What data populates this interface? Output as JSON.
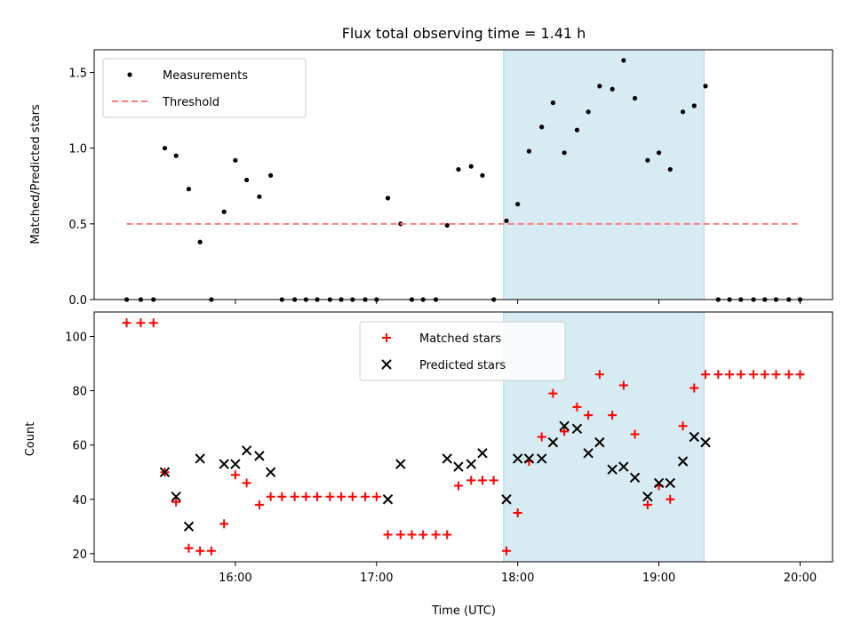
{
  "chart_data": {
    "title": "Flux total observing time = 1.41 h",
    "xlabel": "Time (UTC)",
    "x_ticks": [
      {
        "value": 16.0,
        "label": "16:00"
      },
      {
        "value": 17.0,
        "label": "17:00"
      },
      {
        "value": 18.0,
        "label": "18:00"
      },
      {
        "value": 19.0,
        "label": "19:00"
      },
      {
        "value": 20.0,
        "label": "20:00"
      }
    ],
    "xlim": [
      15.0,
      20.23
    ],
    "shaded_span": {
      "x0": 17.9,
      "x1": 19.32,
      "color": "#add8e6"
    },
    "panels": [
      {
        "type": "scatter",
        "ylabel": "Matched/Predicted stars",
        "ylim": [
          0,
          1.65
        ],
        "y_ticks": [
          {
            "value": 0.0,
            "label": "0.0"
          },
          {
            "value": 0.5,
            "label": "0.5"
          },
          {
            "value": 1.0,
            "label": "1.0"
          },
          {
            "value": 1.5,
            "label": "1.5"
          }
        ],
        "legend_position": "upper-left",
        "series": [
          {
            "name": "Measurements",
            "marker": "dot",
            "color": "#000000",
            "x": [
              15.23,
              15.33,
              15.42,
              15.5,
              15.58,
              15.67,
              15.75,
              15.83,
              15.92,
              16.0,
              16.08,
              16.17,
              16.25,
              16.33,
              16.42,
              16.5,
              16.58,
              16.67,
              16.75,
              16.83,
              16.92,
              17.0,
              17.08,
              17.17,
              17.25,
              17.33,
              17.42,
              17.5,
              17.58,
              17.67,
              17.75,
              17.83,
              17.92,
              18.0,
              18.08,
              18.17,
              18.25,
              18.33,
              18.42,
              18.5,
              18.58,
              18.67,
              18.75,
              18.83,
              18.92,
              19.0,
              19.08,
              19.17,
              19.25,
              19.33,
              19.42,
              19.5,
              19.58,
              19.67,
              19.75,
              19.83,
              19.92,
              20.0
            ],
            "y": [
              0,
              0,
              0,
              1.0,
              0.95,
              0.73,
              0.38,
              0,
              0.58,
              0.92,
              0.79,
              0.68,
              0.82,
              0,
              0,
              0,
              0,
              0,
              0,
              0,
              0,
              0,
              0.67,
              0.5,
              0,
              0,
              0,
              0.49,
              0.86,
              0.88,
              0.82,
              0,
              0.52,
              0.63,
              0.98,
              1.14,
              1.3,
              0.97,
              1.12,
              1.24,
              1.41,
              1.39,
              1.58,
              1.33,
              0.92,
              0.97,
              0.86,
              1.24,
              1.28,
              1.41,
              0,
              0,
              0,
              0,
              0,
              0,
              0,
              0
            ]
          },
          {
            "name": "Threshold",
            "marker": "dashed-line",
            "color": "#ff7f7f",
            "x": [
              15.23,
              20.0
            ],
            "y": [
              0.5,
              0.5
            ]
          }
        ]
      },
      {
        "type": "scatter",
        "ylabel": "Count",
        "ylim": [
          17,
          109
        ],
        "y_ticks": [
          {
            "value": 20,
            "label": "20"
          },
          {
            "value": 40,
            "label": "40"
          },
          {
            "value": 60,
            "label": "60"
          },
          {
            "value": 80,
            "label": "80"
          },
          {
            "value": 100,
            "label": "100"
          }
        ],
        "legend_position": "upper-center",
        "series": [
          {
            "name": "Matched stars",
            "marker": "plus",
            "color": "#ff0000",
            "x": [
              15.23,
              15.33,
              15.42,
              15.5,
              15.58,
              15.67,
              15.75,
              15.83,
              15.92,
              16.0,
              16.08,
              16.17,
              16.25,
              16.33,
              16.42,
              16.5,
              16.58,
              16.67,
              16.75,
              16.83,
              16.92,
              17.0,
              17.08,
              17.17,
              17.25,
              17.33,
              17.42,
              17.5,
              17.58,
              17.67,
              17.75,
              17.83,
              17.92,
              18.0,
              18.08,
              18.17,
              18.25,
              18.33,
              18.42,
              18.5,
              18.58,
              18.67,
              18.75,
              18.83,
              18.92,
              19.0,
              19.08,
              19.17,
              19.25,
              19.33,
              19.42,
              19.5,
              19.58,
              19.67,
              19.75,
              19.83,
              19.92,
              20.0
            ],
            "y": [
              105,
              105,
              105,
              50,
              39,
              22,
              21,
              21,
              31,
              49,
              46,
              38,
              41,
              41,
              41,
              41,
              41,
              41,
              41,
              41,
              41,
              41,
              27,
              27,
              27,
              27,
              27,
              27,
              45,
              47,
              47,
              47,
              21,
              35,
              54,
              63,
              79,
              65,
              74,
              71,
              86,
              71,
              82,
              64,
              38,
              45,
              40,
              67,
              81,
              86,
              86,
              86,
              86,
              86,
              86,
              86,
              86,
              86
            ]
          },
          {
            "name": "Predicted stars",
            "marker": "x",
            "color": "#000000",
            "x": [
              15.5,
              15.58,
              15.67,
              15.75,
              15.92,
              16.0,
              16.08,
              16.17,
              16.25,
              17.08,
              17.17,
              17.5,
              17.58,
              17.67,
              17.75,
              17.92,
              18.0,
              18.08,
              18.17,
              18.25,
              18.33,
              18.42,
              18.5,
              18.58,
              18.67,
              18.75,
              18.83,
              18.92,
              19.0,
              19.08,
              19.17,
              19.25,
              19.33
            ],
            "y": [
              50,
              41,
              30,
              55,
              53,
              53,
              58,
              56,
              50,
              40,
              53,
              55,
              52,
              53,
              57,
              40,
              55,
              55,
              55,
              61,
              67,
              66,
              57,
              61,
              51,
              52,
              48,
              41,
              46,
              46,
              54,
              63,
              61
            ]
          }
        ]
      }
    ]
  }
}
